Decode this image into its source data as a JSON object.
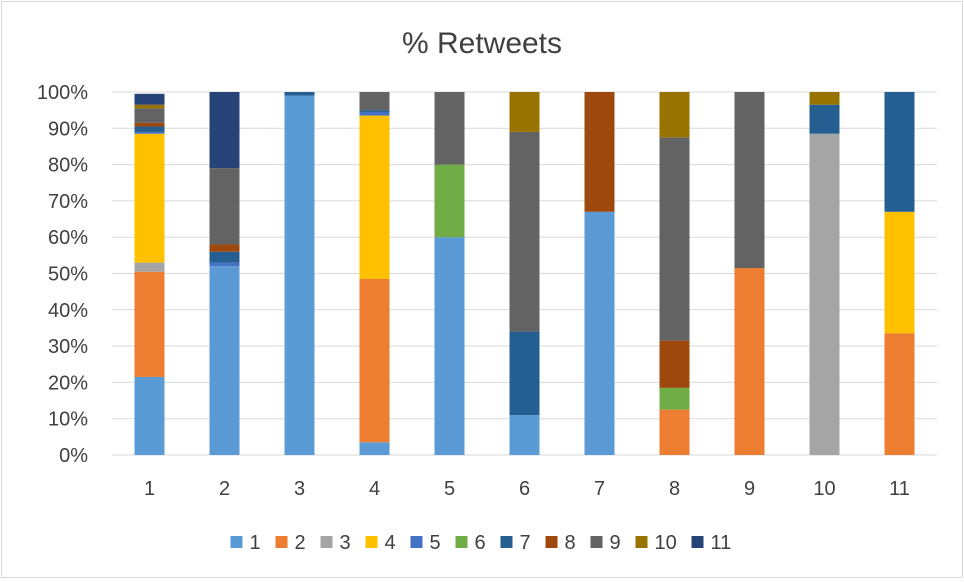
{
  "chart_data": {
    "type": "bar",
    "stacked": true,
    "percent_stacked": true,
    "title": "% Retweets",
    "xlabel": "",
    "ylabel": "",
    "ylim": [
      0,
      100
    ],
    "y_ticks": [
      "0%",
      "10%",
      "20%",
      "30%",
      "40%",
      "50%",
      "60%",
      "70%",
      "80%",
      "90%",
      "100%"
    ],
    "categories": [
      "1",
      "2",
      "3",
      "4",
      "5",
      "6",
      "7",
      "8",
      "9",
      "10",
      "11"
    ],
    "grid": true,
    "legend_position": "bottom",
    "series": [
      {
        "name": "1",
        "color": "#5b9bd5",
        "values": [
          21.5,
          52,
          99,
          3.5,
          60,
          11,
          67,
          0,
          0,
          0,
          0
        ]
      },
      {
        "name": "2",
        "color": "#ed7d31",
        "values": [
          29,
          0,
          0,
          45,
          0,
          0,
          0,
          12.5,
          51.5,
          0,
          33.5
        ]
      },
      {
        "name": "3",
        "color": "#a5a5a5",
        "values": [
          2.5,
          0,
          0,
          0,
          0,
          0,
          0,
          0,
          0,
          88.5,
          0
        ]
      },
      {
        "name": "4",
        "color": "#ffc000",
        "values": [
          35.5,
          0,
          0,
          45,
          0,
          0,
          0,
          0,
          0,
          0,
          33.5
        ]
      },
      {
        "name": "5",
        "color": "#4472c4",
        "values": [
          0.5,
          1,
          0,
          1,
          0,
          0,
          0,
          0,
          0,
          0,
          0
        ]
      },
      {
        "name": "6",
        "color": "#70ad47",
        "values": [
          0,
          0,
          0,
          0,
          20,
          0,
          0,
          6,
          0,
          0,
          0
        ]
      },
      {
        "name": "7",
        "color": "#255e91",
        "values": [
          1.5,
          3,
          1,
          0.5,
          0,
          23,
          0,
          0,
          0,
          8,
          33
        ]
      },
      {
        "name": "8",
        "color": "#9e480e",
        "values": [
          1,
          2,
          0,
          0,
          0,
          0,
          33,
          13,
          0,
          0,
          0
        ]
      },
      {
        "name": "9",
        "color": "#636363",
        "values": [
          4,
          21,
          0,
          5,
          20,
          55,
          0,
          56,
          48.5,
          0,
          0
        ]
      },
      {
        "name": "10",
        "color": "#997300",
        "values": [
          1,
          0,
          0,
          0,
          0,
          11,
          0,
          12.5,
          0,
          3.5,
          0
        ]
      },
      {
        "name": "11",
        "color": "#264478",
        "values": [
          3,
          21,
          0,
          0,
          0,
          0,
          0,
          0,
          0,
          0,
          0
        ]
      }
    ]
  }
}
